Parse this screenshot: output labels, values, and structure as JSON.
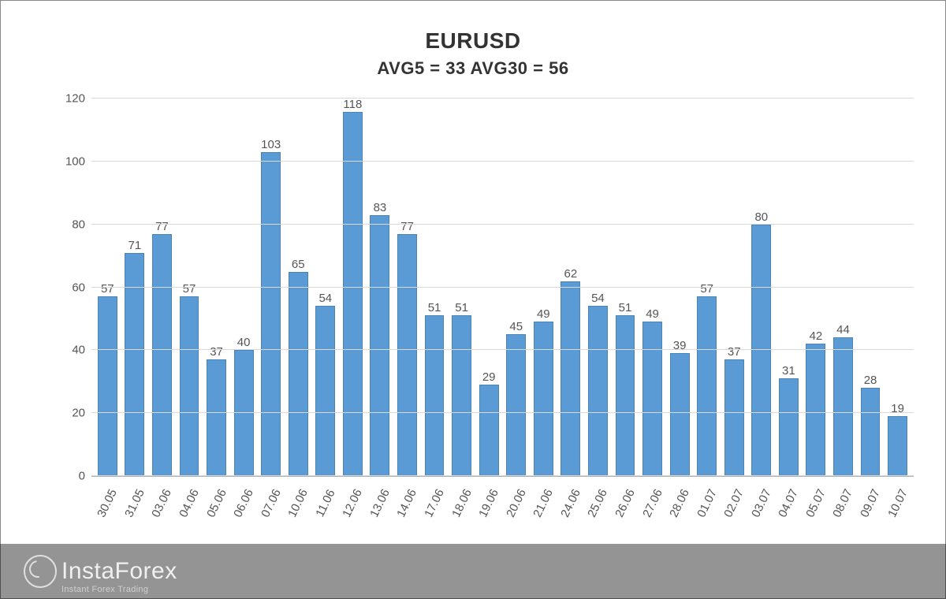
{
  "chart": {
    "type": "bar",
    "title": "EURUSD",
    "subtitle": "AVG5 = 33 AVG30 = 56",
    "title_fontsize": 28,
    "subtitle_fontsize": 22,
    "categories": [
      "30.05",
      "31.05",
      "03.06",
      "04.06",
      "05.06",
      "06.06",
      "07.06",
      "10.06",
      "11.06",
      "12.06",
      "13.06",
      "14.06",
      "17.06",
      "18.06",
      "19.06",
      "20.06",
      "21.06",
      "24.06",
      "25.06",
      "26.06",
      "27.06",
      "28.06",
      "01.07",
      "02.07",
      "03.07",
      "04.07",
      "05.07",
      "08.07",
      "09.07",
      "10.07"
    ],
    "values": [
      57,
      71,
      77,
      57,
      37,
      40,
      103,
      65,
      54,
      118,
      83,
      77,
      51,
      51,
      29,
      45,
      49,
      62,
      54,
      51,
      49,
      39,
      57,
      37,
      80,
      31,
      42,
      44,
      28,
      19
    ],
    "bar_color": "#5a9bd5",
    "bar_border": "rgba(0,0,0,0.15)",
    "bar_width": 0.72,
    "ylim": [
      0,
      120
    ],
    "ytick_step": 20,
    "yticks": [
      0,
      20,
      40,
      60,
      80,
      100,
      120
    ],
    "grid_color": "#d9d9d9",
    "axis_color": "#b0b0b0",
    "background_color": "#ffffff",
    "label_fontsize": 15,
    "value_fontsize": 15,
    "text_color": "#555555",
    "xlabel_rotation_deg": -64
  },
  "watermark": {
    "brand": "InstaForex",
    "tagline": "Instant Forex Trading",
    "overlay_bg": "rgba(0,0,0,0.42)",
    "text_color": "#f0f0f0"
  }
}
